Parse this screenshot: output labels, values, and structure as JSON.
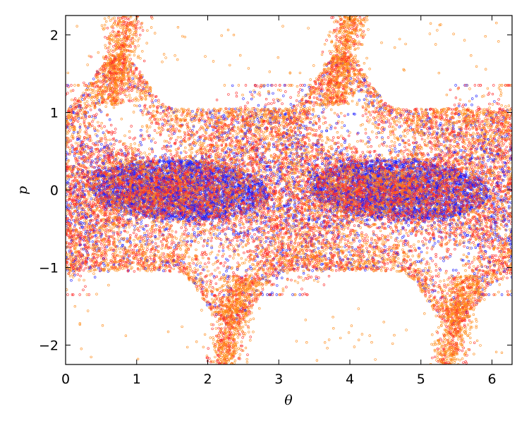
{
  "chart_data": {
    "type": "scatter",
    "title": "",
    "xlabel": "θ",
    "ylabel": "p",
    "xlim": [
      0,
      6.283
    ],
    "ylim": [
      -2.25,
      2.25
    ],
    "x_ticks": [
      0,
      1,
      2,
      3,
      4,
      5,
      6
    ],
    "y_ticks": [
      -2,
      -1,
      0,
      1,
      2
    ],
    "x_tick_labels": [
      "0",
      "1",
      "2",
      "3",
      "4",
      "5",
      "6"
    ],
    "y_tick_labels": [
      "−2",
      "−1",
      "0",
      "1",
      "2"
    ],
    "grid": false,
    "legend": "none",
    "marker": "small hollow circles",
    "colors": [
      "#1f1fff",
      "#ff2a2a",
      "#ff8c1a"
    ],
    "pattern": {
      "period_theta": 3.1416,
      "island_centers": [
        [
          1.6,
          0.0
        ],
        [
          4.7,
          0.0
        ]
      ],
      "chaotic_band_half_width_p": 1.0,
      "outer_arcs_p_max": 2.2
    },
    "description_points": [
      {
        "x": 1.6,
        "y": 0.0,
        "series": "blue"
      },
      {
        "x": 4.7,
        "y": 0.0,
        "series": "blue"
      },
      {
        "x": 0.75,
        "y": 1.7,
        "series": "orange"
      },
      {
        "x": 3.9,
        "y": 1.7,
        "series": "orange"
      },
      {
        "x": 2.3,
        "y": -1.7,
        "series": "orange"
      },
      {
        "x": 5.5,
        "y": -1.7,
        "series": "orange"
      }
    ]
  }
}
